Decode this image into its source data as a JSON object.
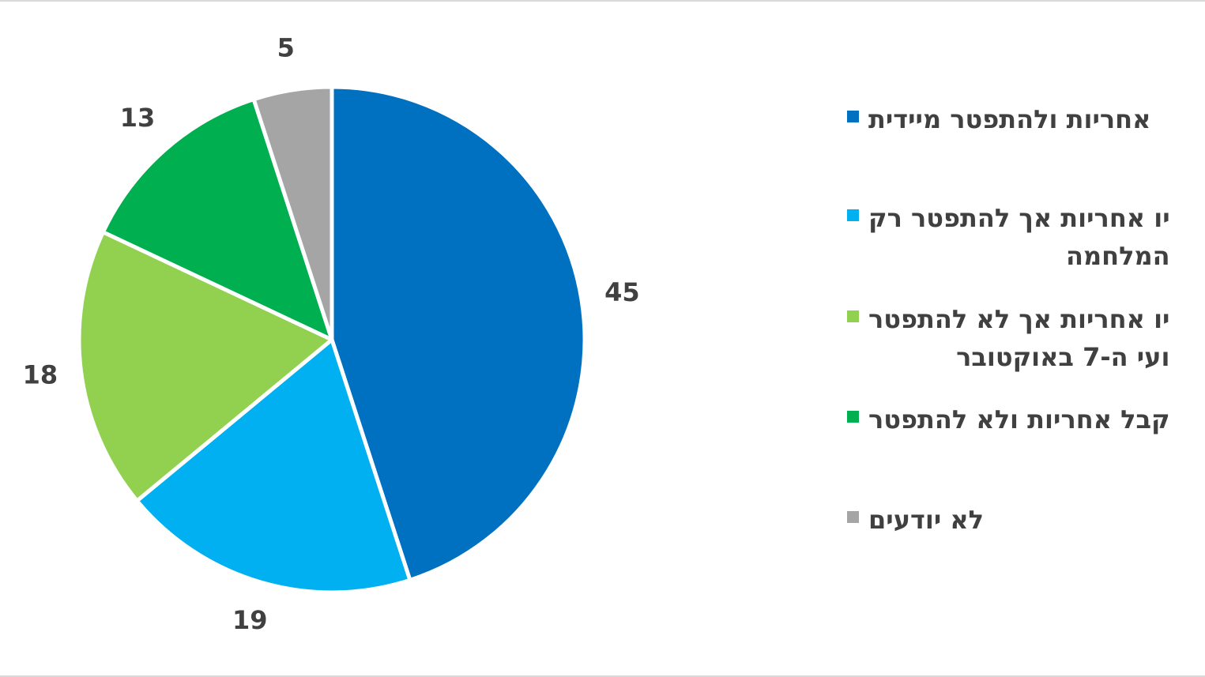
{
  "chart_data": {
    "type": "pie",
    "categories": [
      "אחריות ולהתפטר מיידית",
      "יו אחריות אך להתפטר רק\nהמלחמה",
      "יו אחריות אך לא להתפטר\nועי ה-7 באוקטובר",
      "קבל אחריות ולא להתפטר",
      "לא יודעים"
    ],
    "values": [
      45,
      19,
      18,
      13,
      5
    ],
    "colors": [
      "#0070c0",
      "#00b0f0",
      "#92d050",
      "#00b050",
      "#a5a5a5"
    ],
    "legend": "right"
  }
}
